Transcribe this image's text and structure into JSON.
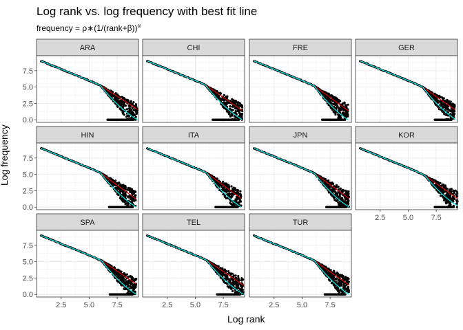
{
  "chart_data": {
    "type": "scatter",
    "title": "Log rank vs. log frequency with best fit line",
    "subtitle": "frequency = ρ∗(1/(rank+β))",
    "subtitle_exp": "α",
    "xlabel": "Log rank",
    "ylabel": "Log frequency",
    "xlim": [
      0.3,
      9.4
    ],
    "ylim": [
      -0.4,
      9.8
    ],
    "x_ticks": [
      2.5,
      5.0,
      7.5
    ],
    "y_ticks": [
      0.0,
      2.5,
      5.0,
      7.5
    ],
    "x_tick_labels": [
      "2.5",
      "5.0",
      "7.5"
    ],
    "y_tick_labels": [
      "0.0",
      "2.5",
      "5.0",
      "7.5"
    ],
    "panel_background": "#ffffff",
    "strip_background": "#d9d9d9",
    "grid_color": "#ebebeb",
    "point_color": "#000000",
    "series": [
      {
        "style": "line",
        "color": "#cc0000"
      },
      {
        "style": "line",
        "color": "#00e5e5"
      }
    ],
    "panels": [
      {
        "label": "ARA",
        "x_max": 9.3,
        "knee": 6.0,
        "end_red": 1.6,
        "end_cyan": 0.0
      },
      {
        "label": "CHI",
        "x_max": 9.2,
        "knee": 5.9,
        "end_red": 1.4,
        "end_cyan": 0.0
      },
      {
        "label": "FRE",
        "x_max": 9.1,
        "knee": 6.1,
        "end_red": 1.4,
        "end_cyan": 0.0
      },
      {
        "label": "GER",
        "x_max": 9.2,
        "knee": 6.3,
        "end_red": 1.5,
        "end_cyan": 0.1
      },
      {
        "label": "HIN",
        "x_max": 9.2,
        "knee": 6.0,
        "end_red": 1.2,
        "end_cyan": 0.0
      },
      {
        "label": "ITA",
        "x_max": 9.1,
        "knee": 6.0,
        "end_red": 1.3,
        "end_cyan": 0.0
      },
      {
        "label": "JPN",
        "x_max": 9.2,
        "knee": 6.1,
        "end_red": 1.3,
        "end_cyan": 0.0
      },
      {
        "label": "KOR",
        "x_max": 9.4,
        "knee": 6.5,
        "end_red": 1.3,
        "end_cyan": 0.2
      },
      {
        "label": "SPA",
        "x_max": 9.2,
        "knee": 6.1,
        "end_red": 1.6,
        "end_cyan": 0.0
      },
      {
        "label": "TEL",
        "x_max": 9.3,
        "knee": 6.0,
        "end_red": 1.4,
        "end_cyan": 0.0
      },
      {
        "label": "TUR",
        "x_max": 9.2,
        "knee": 6.1,
        "end_red": 1.4,
        "end_cyan": 0.0
      }
    ]
  }
}
